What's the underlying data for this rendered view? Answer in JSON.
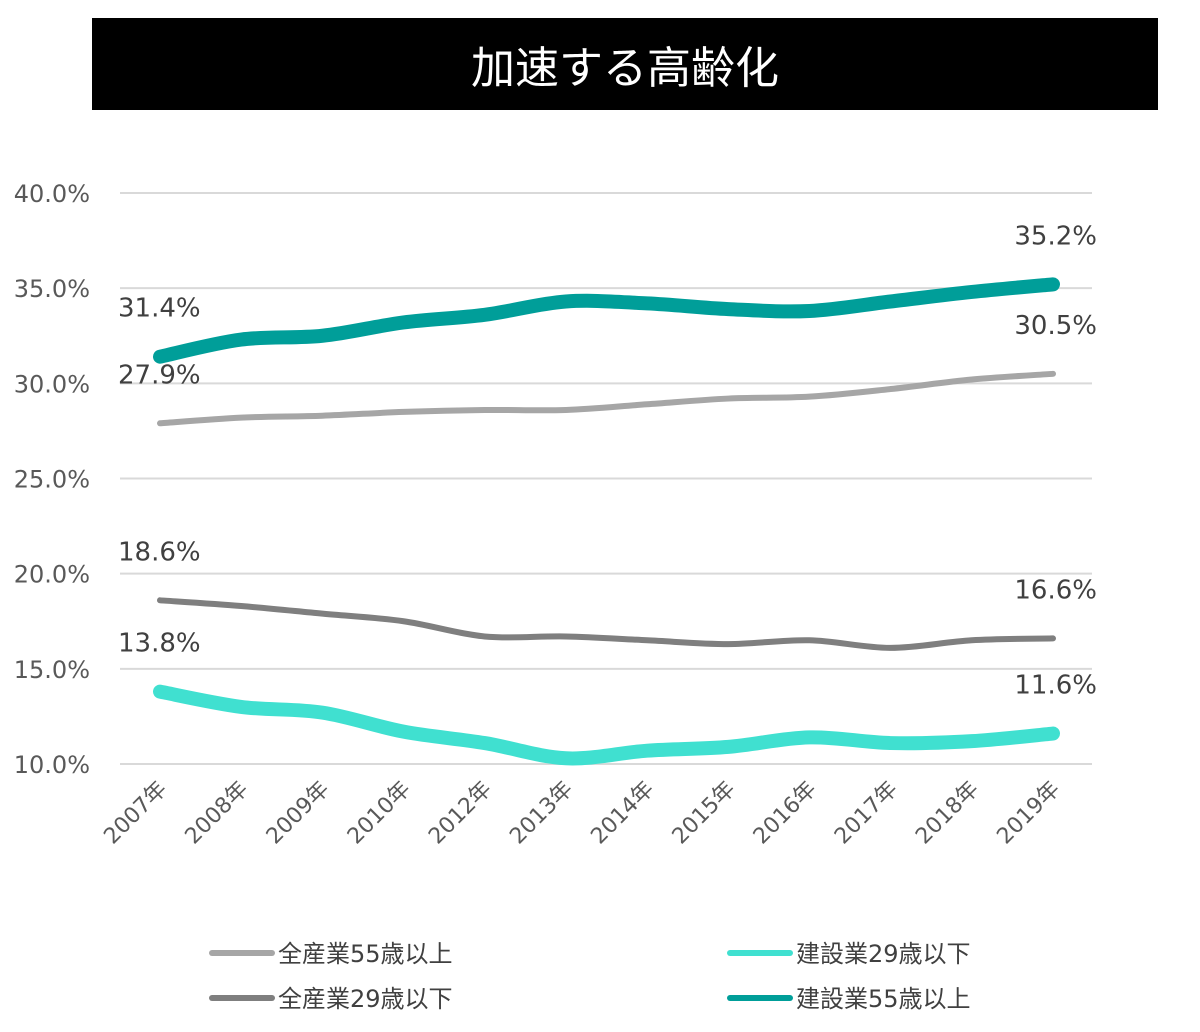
{
  "chart_data": {
    "type": "line",
    "title": "加速する高齢化",
    "categories": [
      "2007年",
      "2008年",
      "2009年",
      "2010年",
      "2012年",
      "2013年",
      "2014年",
      "2015年",
      "2016年",
      "2017年",
      "2018年",
      "2019年"
    ],
    "ylim": [
      10,
      40
    ],
    "yticks": [
      "10.0%",
      "15.0%",
      "20.0%",
      "25.0%",
      "30.0%",
      "35.0%",
      "40.0%"
    ],
    "grid": true,
    "legend_position": "bottom",
    "series": [
      {
        "name": "全産業55歳以上",
        "color": "#a6a6a6",
        "width": 6,
        "values": [
          27.9,
          28.2,
          28.3,
          28.5,
          28.6,
          28.6,
          28.9,
          29.2,
          29.3,
          29.7,
          30.2,
          30.5
        ],
        "labels": [
          "27.9%",
          "30.5%"
        ]
      },
      {
        "name": "全産業29歳以下",
        "color": "#7f7f7f",
        "width": 6,
        "values": [
          18.6,
          18.3,
          17.9,
          17.5,
          16.7,
          16.7,
          16.5,
          16.3,
          16.5,
          16.1,
          16.5,
          16.6
        ],
        "labels": [
          "18.6%",
          "16.6%"
        ]
      },
      {
        "name": "建設業29歳以下",
        "color": "#40e0d0",
        "width": 14,
        "values": [
          13.8,
          13.0,
          12.7,
          11.7,
          11.1,
          10.3,
          10.7,
          10.9,
          11.4,
          11.1,
          11.2,
          11.6
        ],
        "labels": [
          "13.8%",
          "11.6%"
        ]
      },
      {
        "name": "建設業55歳以上",
        "color": "#009e99",
        "width": 14,
        "values": [
          31.4,
          32.3,
          32.5,
          33.2,
          33.6,
          34.3,
          34.2,
          33.9,
          33.8,
          34.3,
          34.8,
          35.2
        ],
        "labels": [
          "31.4%",
          "35.2%"
        ]
      }
    ]
  }
}
